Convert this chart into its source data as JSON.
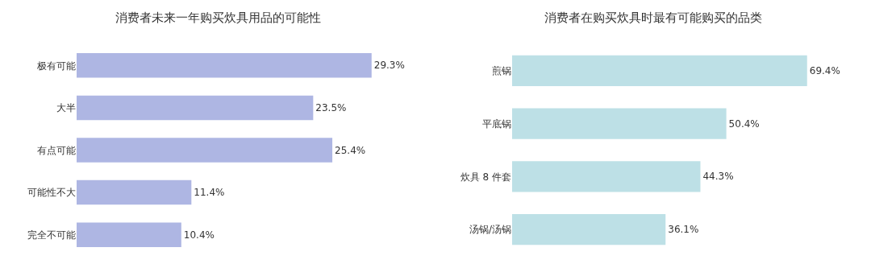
{
  "chart_data": [
    {
      "type": "bar",
      "orientation": "horizontal",
      "title": "消费者未来一年购买炊具用品的可能性",
      "categories": [
        "极有可能",
        "大半",
        "有点可能",
        "可能性不大",
        "完全不可能"
      ],
      "values": [
        29.3,
        23.5,
        25.4,
        11.4,
        10.4
      ],
      "value_labels": [
        "29.3%",
        "23.5%",
        "25.4%",
        "11.4%",
        "10.4%"
      ],
      "color": "#aeb6e3"
    },
    {
      "type": "bar",
      "orientation": "horizontal",
      "title": "消费者在购买炊具时最有可能购买的品类",
      "categories": [
        "煎锅",
        "平底锅",
        "炊具 8 件套",
        "汤锅/汤锅"
      ],
      "values": [
        69.4,
        50.4,
        44.3,
        36.1
      ],
      "value_labels": [
        "69.4%",
        "50.4%",
        "44.3%",
        "36.1%"
      ],
      "color": "#bde0e6"
    }
  ]
}
